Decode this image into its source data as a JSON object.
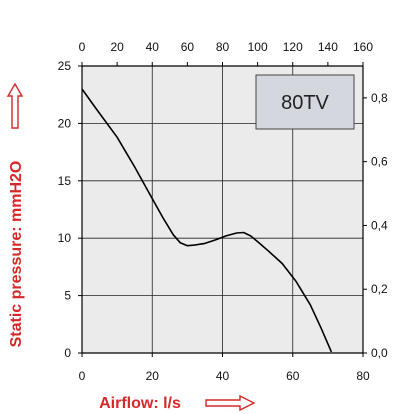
{
  "chart_data": {
    "type": "line",
    "model_label": "80TV",
    "xlabel": "Airflow: l/s",
    "ylabel": "Static pressure: mmH2O",
    "xlim": [
      0,
      80
    ],
    "ylim": [
      0,
      25
    ],
    "x_ticks": [
      "0",
      "20",
      "40",
      "60",
      "80"
    ],
    "y_ticks": [
      "0",
      "5",
      "10",
      "15",
      "20",
      "25"
    ],
    "top_axis": {
      "lim": [
        0,
        160
      ],
      "ticks": [
        "0",
        "20",
        "40",
        "60",
        "80",
        "100",
        "120",
        "140",
        "160"
      ]
    },
    "right_axis": {
      "lim": [
        0,
        0.9
      ],
      "ticks": [
        "0,0",
        "0,2",
        "0,4",
        "0,6",
        "0,8"
      ]
    },
    "grid": true,
    "colors": {
      "curve": "#000000",
      "plot_bg": "#ebebeb",
      "label_box": "#d4d7de",
      "axis_title": "#d62828"
    },
    "series": [
      {
        "x": [
          0,
          4,
          10,
          15,
          19,
          23,
          26,
          28,
          30,
          32,
          35,
          38,
          41,
          44,
          46,
          48,
          50,
          53,
          57,
          61,
          65,
          68,
          71
        ],
        "y": [
          23.0,
          21.3,
          18.8,
          16.2,
          14.0,
          11.8,
          10.3,
          9.6,
          9.35,
          9.4,
          9.55,
          9.85,
          10.2,
          10.45,
          10.5,
          10.2,
          9.7,
          8.9,
          7.8,
          6.2,
          4.2,
          2.2,
          0.1
        ]
      }
    ]
  }
}
